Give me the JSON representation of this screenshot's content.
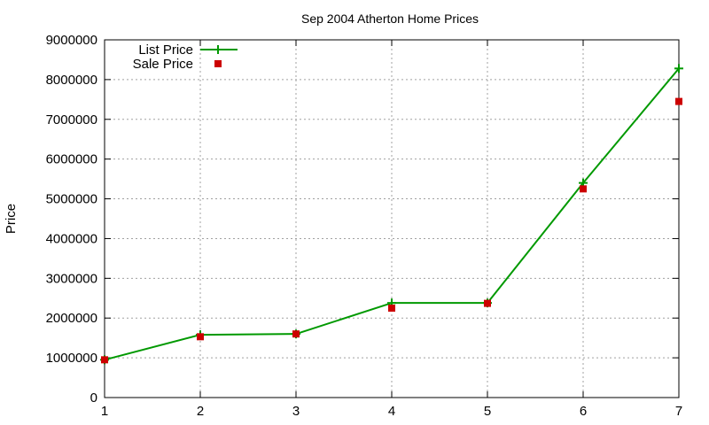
{
  "chart_data": {
    "type": "line",
    "title": "Sep 2004 Atherton Home Prices",
    "xlabel": "",
    "ylabel": "Price",
    "x": [
      1,
      2,
      3,
      4,
      5,
      6,
      7
    ],
    "xlim": [
      1,
      7
    ],
    "ylim": [
      0,
      9000000
    ],
    "xticks": [
      "1",
      "2",
      "3",
      "4",
      "5",
      "6",
      "7"
    ],
    "yticks": [
      "0",
      "1000000",
      "2000000",
      "3000000",
      "4000000",
      "5000000",
      "6000000",
      "7000000",
      "8000000",
      "9000000"
    ],
    "grid": true,
    "legend_position": "top-left",
    "series": [
      {
        "name": "List Price",
        "style": "lines+points",
        "marker": "plus",
        "color": "#009900",
        "values": [
          950000,
          1580000,
          1600000,
          2380000,
          2380000,
          5400000,
          8280000
        ]
      },
      {
        "name": "Sale Price",
        "style": "points",
        "marker": "square",
        "color": "#cc0000",
        "values": [
          950000,
          1530000,
          1600000,
          2250000,
          2370000,
          5250000,
          7450000
        ]
      }
    ]
  }
}
